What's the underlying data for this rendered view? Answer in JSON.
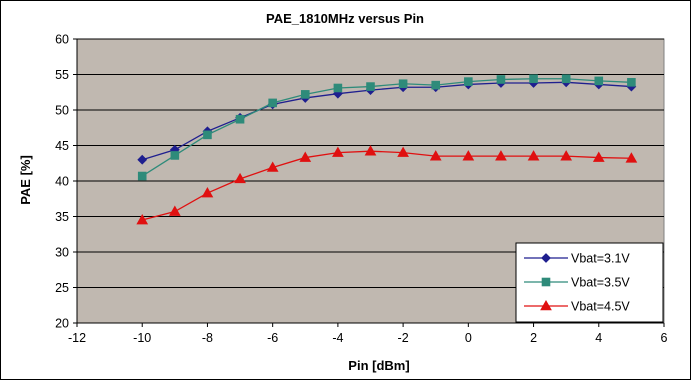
{
  "chart_data": {
    "type": "line",
    "title": "PAE_1810MHz versus Pin",
    "xlabel": "Pin [dBm]",
    "ylabel": "PAE [%]",
    "xlim": [
      -12,
      6
    ],
    "ylim": [
      20,
      60
    ],
    "xticks": [
      -12,
      -10,
      -8,
      -6,
      -4,
      -2,
      0,
      2,
      4,
      6
    ],
    "yticks": [
      20,
      25,
      30,
      35,
      40,
      45,
      50,
      55,
      60
    ],
    "grid": "horizontal",
    "legend_position": "bottom-right",
    "plot_background": "#c0b8b0",
    "x": [
      -10,
      -9,
      -8,
      -7,
      -6,
      -5,
      -4,
      -3,
      -2,
      -1,
      0,
      1,
      2,
      3,
      4,
      5
    ],
    "series": [
      {
        "name": "Vbat=3.1V",
        "color": "#1f1f8f",
        "marker": "diamond",
        "values": [
          43.0,
          44.4,
          47.0,
          48.9,
          50.8,
          51.7,
          52.3,
          52.8,
          53.2,
          53.2,
          53.6,
          53.8,
          53.8,
          53.9,
          53.6,
          53.3
        ]
      },
      {
        "name": "Vbat=3.5V",
        "color": "#2e8b7a",
        "marker": "square",
        "values": [
          40.7,
          43.6,
          46.5,
          48.7,
          51.0,
          52.2,
          53.1,
          53.3,
          53.7,
          53.5,
          54.0,
          54.3,
          54.4,
          54.4,
          54.1,
          53.9
        ]
      },
      {
        "name": "Vbat=4.5V",
        "color": "#e01010",
        "marker": "triangle",
        "values": [
          34.5,
          35.7,
          38.3,
          40.3,
          41.9,
          43.3,
          44.0,
          44.2,
          44.0,
          43.5,
          43.5,
          43.5,
          43.5,
          43.5,
          43.3,
          43.2
        ]
      }
    ]
  }
}
